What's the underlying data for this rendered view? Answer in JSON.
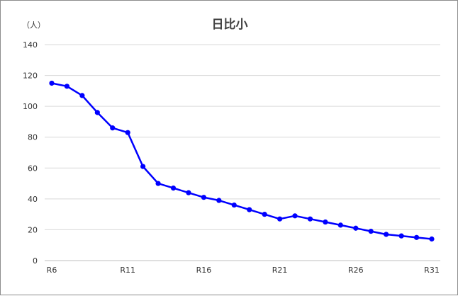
{
  "chart_data": {
    "type": "line",
    "title": "日比小",
    "unit_label": "（人）",
    "xlabel": "",
    "ylabel": "",
    "ylim": [
      0,
      140
    ],
    "y_ticks": [
      0,
      20,
      40,
      60,
      80,
      100,
      120,
      140
    ],
    "grid": true,
    "legend": "none",
    "categories": [
      "R6",
      "R7",
      "R8",
      "R9",
      "R10",
      "R11",
      "R12",
      "R13",
      "R14",
      "R15",
      "R16",
      "R17",
      "R18",
      "R19",
      "R20",
      "R21",
      "R22",
      "R23",
      "R24",
      "R25",
      "R26",
      "R27",
      "R28",
      "R29",
      "R30",
      "R31"
    ],
    "x_tick_labels": [
      "R6",
      "",
      "",
      "",
      "",
      "R11",
      "",
      "",
      "",
      "",
      "R16",
      "",
      "",
      "",
      "",
      "R21",
      "",
      "",
      "",
      "",
      "R26",
      "",
      "",
      "",
      "",
      "R31"
    ],
    "series": [
      {
        "color": "#0000ff",
        "values": [
          115,
          113,
          107,
          96,
          86,
          83,
          61,
          50,
          47,
          44,
          41,
          39,
          36,
          33,
          30,
          27,
          29,
          27,
          25,
          23,
          21,
          19,
          17,
          16,
          15,
          14
        ]
      }
    ]
  }
}
